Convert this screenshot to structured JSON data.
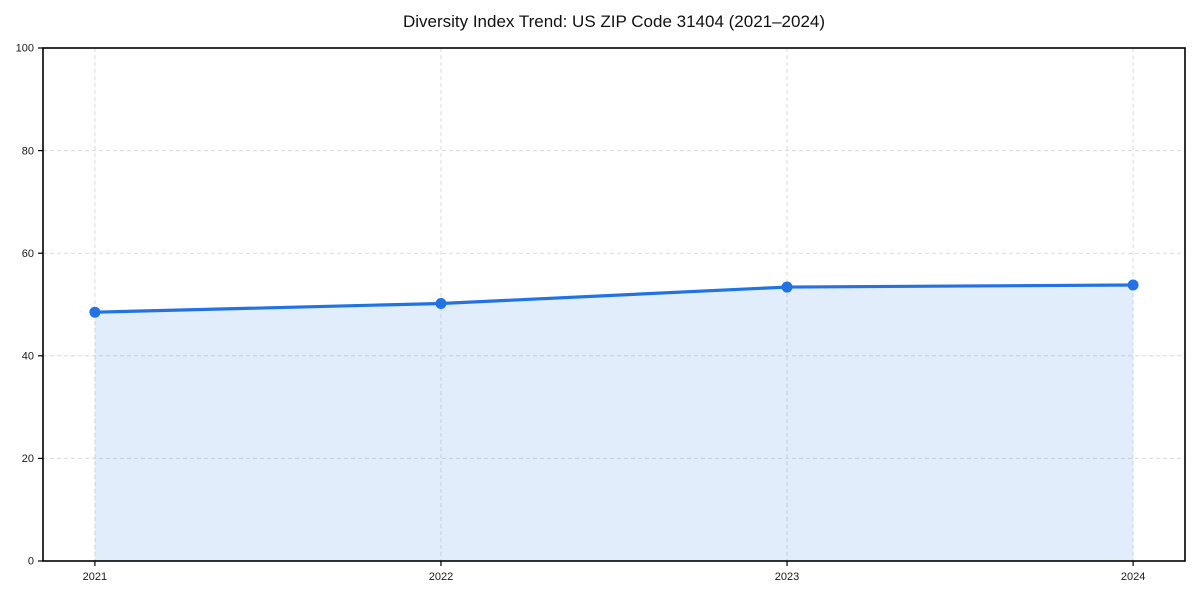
{
  "page": {
    "background": "#ffffff"
  },
  "chart_data": {
    "type": "line",
    "title": "Diversity Index Trend: US ZIP Code 31404 (2021–2024)",
    "x": [
      2021,
      2022,
      2023,
      2024
    ],
    "x_tick_labels": [
      "2021",
      "2022",
      "2023",
      "2024"
    ],
    "series": [
      {
        "name": "Diversity Index",
        "values": [
          48.5,
          50.2,
          53.4,
          53.8
        ]
      }
    ],
    "xlabel": "",
    "ylabel": "",
    "ylim": [
      0,
      100
    ],
    "yticks": [
      0,
      20,
      40,
      60,
      80,
      100
    ],
    "grid": "dashed-both-axes",
    "legend_position": "none",
    "area_fill_to_zero": true,
    "markers": "filled-circles",
    "colors": {
      "line": "#2173e3",
      "marker": "#2173e3",
      "fill": "rgba(33,115,227,0.13)",
      "grid": "#dcdcdc",
      "axis": "#000000",
      "tick_text": "#1a1a1a",
      "title_text": "#111111"
    }
  }
}
